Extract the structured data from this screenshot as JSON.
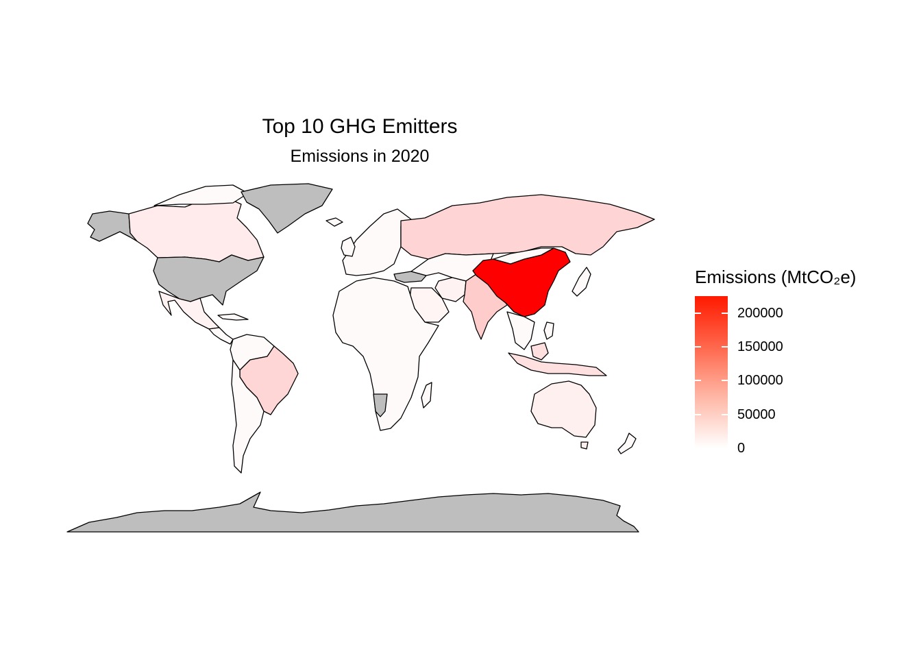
{
  "title": "Top 10 GHG Emitters",
  "subtitle": "Emissions in 2020",
  "legend": {
    "title": "Emissions (MtCO₂e)",
    "ticks": [
      "200000",
      "150000",
      "100000",
      "50000",
      "0"
    ],
    "tick_values": [
      200000,
      150000,
      100000,
      50000,
      0
    ],
    "min": 0,
    "max": 225000,
    "color_high": "#ff0000",
    "color_low": "#ffffff"
  },
  "colors": {
    "missing": "#bebebe",
    "border": "#000000"
  },
  "map_data": {
    "variable": "Emissions (MtCO₂e)",
    "year": 2020,
    "regions": [
      {
        "name": "China",
        "level": 1.0
      },
      {
        "name": "India",
        "level": 0.2
      },
      {
        "name": "Russia",
        "level": 0.17
      },
      {
        "name": "Brazil",
        "level": 0.16
      },
      {
        "name": "Indonesia",
        "level": 0.12
      },
      {
        "name": "Canada",
        "level": 0.08
      },
      {
        "name": "Australia",
        "level": 0.06
      },
      {
        "name": "Iran",
        "level": 0.05
      },
      {
        "name": "Mexico",
        "level": 0.05
      },
      {
        "name": "Saudi Arabia",
        "level": 0.04
      },
      {
        "name": "Other countries",
        "level": 0.02
      },
      {
        "name": "United States",
        "level": null
      },
      {
        "name": "Greenland",
        "level": null
      },
      {
        "name": "Alaska",
        "level": null
      },
      {
        "name": "Antarctica",
        "level": null
      },
      {
        "name": "Namibia",
        "level": null
      },
      {
        "name": "Turkey",
        "level": null
      }
    ]
  }
}
